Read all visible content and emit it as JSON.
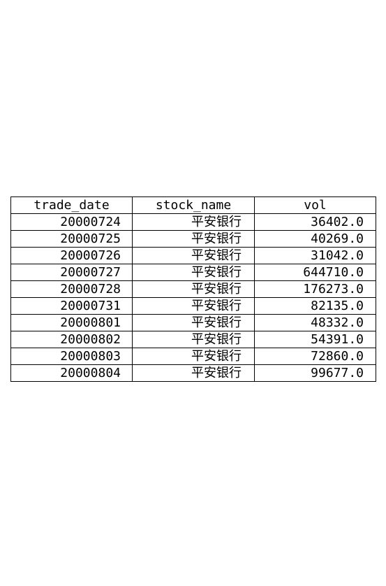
{
  "chart_data": {
    "type": "table",
    "columns": [
      "trade_date",
      "stock_name",
      "vol"
    ],
    "rows": [
      [
        "20000724",
        "平安银行",
        "36402.0"
      ],
      [
        "20000725",
        "平安银行",
        "40269.0"
      ],
      [
        "20000726",
        "平安银行",
        "31042.0"
      ],
      [
        "20000727",
        "平安银行",
        "644710.0"
      ],
      [
        "20000728",
        "平安银行",
        "176273.0"
      ],
      [
        "20000731",
        "平安银行",
        "82135.0"
      ],
      [
        "20000801",
        "平安银行",
        "48332.0"
      ],
      [
        "20000802",
        "平安银行",
        "54391.0"
      ],
      [
        "20000803",
        "平安银行",
        "72860.0"
      ],
      [
        "20000804",
        "平安银行",
        "99677.0"
      ]
    ]
  }
}
